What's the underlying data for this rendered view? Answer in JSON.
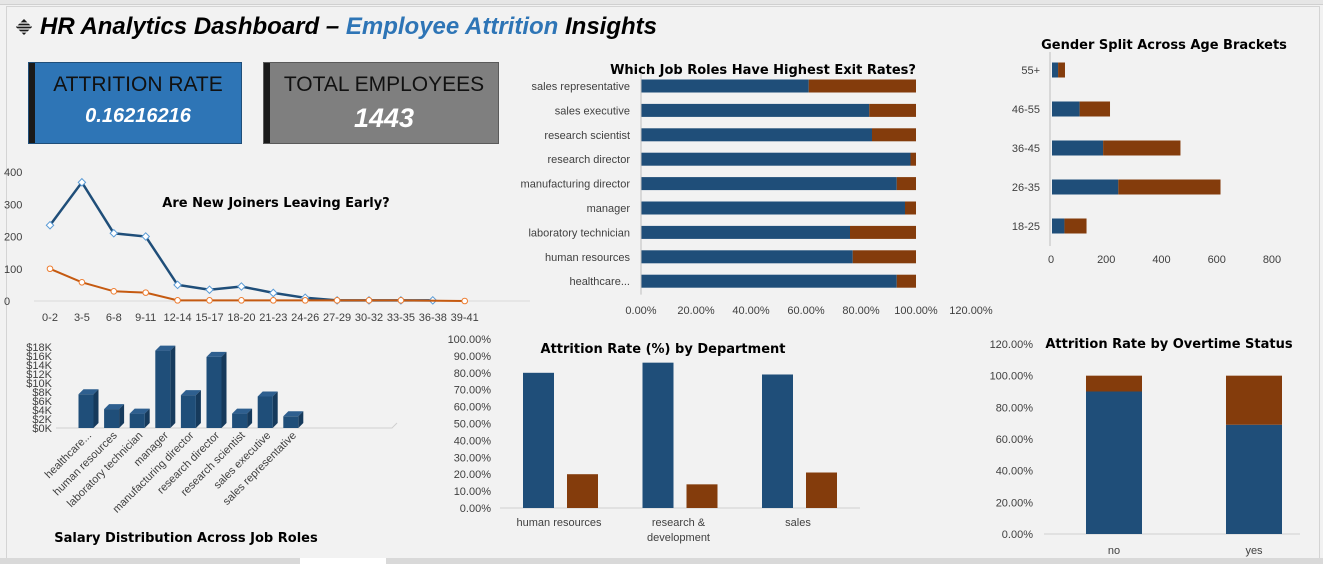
{
  "header": {
    "title_prefix": "HR Analytics Dashboard – ",
    "title_accent": "Employee Attrition",
    "title_suffix": " Insights"
  },
  "kpis": {
    "attrition_label": "ATTRITION RATE",
    "attrition_value": "0.16216216",
    "employees_label": "TOTAL EMPLOYEES",
    "employees_value": "1443"
  },
  "colors": {
    "blue": "#1f4e79",
    "orange": "#843c0c",
    "kpi_blue": "#2e75b6",
    "kpi_gray": "#7f7f7f"
  },
  "chart_data": [
    {
      "id": "new-joiners",
      "type": "line",
      "title": "Are New Joiners Leaving Early?",
      "categories": [
        "0-2",
        "3-5",
        "6-8",
        "9-11",
        "12-14",
        "15-17",
        "18-20",
        "21-23",
        "24-26",
        "27-29",
        "30-32",
        "33-35",
        "36-38",
        "39-41"
      ],
      "series": [
        {
          "values": [
            235,
            368,
            210,
            200,
            50,
            35,
            45,
            25,
            10,
            2,
            2,
            2,
            2,
            null
          ]
        },
        {
          "values": [
            100,
            58,
            30,
            26,
            2,
            2,
            2,
            2,
            2,
            2,
            2,
            2,
            null,
            0
          ]
        }
      ],
      "yticks": [
        "400",
        "300",
        "200",
        "100",
        "0"
      ],
      "ylim": [
        0,
        400
      ],
      "grid": false
    },
    {
      "id": "job-roles-exit",
      "type": "bar",
      "orientation": "horizontal",
      "stacked": true,
      "title": "Which Job Roles Have Highest Exit Rates?",
      "categories": [
        "sales representative",
        "sales executive",
        "research scientist",
        "research director",
        "manufacturing director",
        "manager",
        "laboratory technician",
        "human resources",
        "healthcare..."
      ],
      "series": [
        {
          "values": [
            0.61,
            0.83,
            0.84,
            0.98,
            0.93,
            0.96,
            0.76,
            0.77,
            0.93
          ]
        },
        {
          "values": [
            0.39,
            0.17,
            0.16,
            0.02,
            0.07,
            0.04,
            0.24,
            0.23,
            0.07
          ]
        }
      ],
      "xticks": [
        "0.00%",
        "20.00%",
        "40.00%",
        "60.00%",
        "80.00%",
        "100.00%",
        "120.00%"
      ],
      "xlim": [
        0,
        1.2
      ]
    },
    {
      "id": "gender-age",
      "type": "bar",
      "orientation": "horizontal",
      "stacked": true,
      "title": "Gender Split Across Age Brackets",
      "categories": [
        "55+",
        "46-55",
        "36-45",
        "26-35",
        "18-25"
      ],
      "series": [
        {
          "values": [
            22,
            100,
            185,
            240,
            45
          ]
        },
        {
          "values": [
            25,
            110,
            280,
            370,
            80
          ]
        }
      ],
      "xticks": [
        "0",
        "200",
        "400",
        "600",
        "800"
      ],
      "xlim": [
        0,
        800
      ]
    },
    {
      "id": "salary-roles",
      "type": "bar",
      "title": "Salary Distribution Across Job Roles",
      "categories": [
        "healthcare...",
        "human resources",
        "laboratory technician",
        "manager",
        "manufacturing director",
        "research director",
        "research scientist",
        "sales executive",
        "sales representative"
      ],
      "values": [
        7500,
        4200,
        3200,
        17200,
        7300,
        15800,
        3200,
        7000,
        2600
      ],
      "yticks": [
        "$18K",
        "$16K",
        "$14K",
        "$12K",
        "$10K",
        "$8K",
        "$6K",
        "$4K",
        "$2K",
        "$0K"
      ],
      "ylim": [
        0,
        18000
      ]
    },
    {
      "id": "dept-attrition",
      "type": "bar",
      "title": "Attrition Rate (%) by Department",
      "categories": [
        "human resources",
        "research & development",
        "sales"
      ],
      "category_lines": [
        [
          "human resources"
        ],
        [
          "research &",
          "development"
        ],
        [
          "sales"
        ]
      ],
      "series": [
        {
          "values": [
            0.8,
            0.86,
            0.79
          ]
        },
        {
          "values": [
            0.2,
            0.14,
            0.21
          ]
        }
      ],
      "yticks": [
        "100.00%",
        "90.00%",
        "80.00%",
        "70.00%",
        "60.00%",
        "50.00%",
        "40.00%",
        "30.00%",
        "20.00%",
        "10.00%",
        "0.00%"
      ],
      "ylim": [
        0,
        1
      ]
    },
    {
      "id": "overtime",
      "type": "bar",
      "stacked": true,
      "title": "Attrition Rate by Overtime Status",
      "categories": [
        "no",
        "yes"
      ],
      "series": [
        {
          "values": [
            0.9,
            0.69
          ]
        },
        {
          "values": [
            0.1,
            0.31
          ]
        }
      ],
      "yticks": [
        "120.00%",
        "100.00%",
        "80.00%",
        "60.00%",
        "40.00%",
        "20.00%",
        "0.00%"
      ],
      "ylim": [
        0,
        1.2
      ]
    }
  ]
}
